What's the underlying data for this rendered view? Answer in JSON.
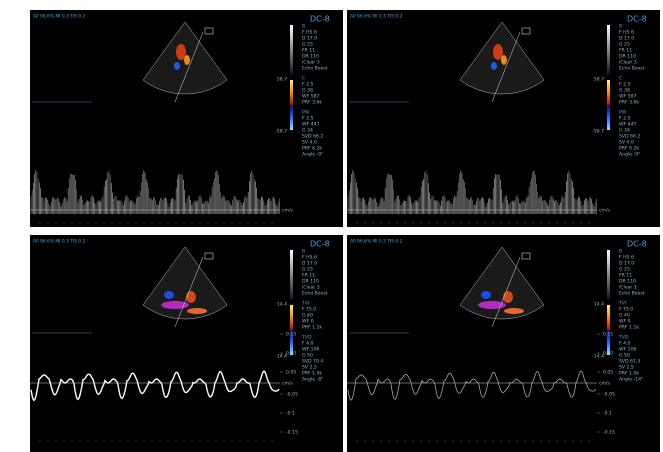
{
  "panels": [
    {
      "header": "AP 96.6% MI 0.3 TIS 0.2",
      "probe": "DC-8",
      "groups": [
        [
          "B",
          "F H5.6",
          "D 17.0",
          "G 25",
          "FR 11",
          "DR 110",
          "iClear 3",
          "Echo Boost"
        ],
        [
          "C",
          "F 2.5",
          "G 38",
          "WF 587",
          "PRF 3.6k"
        ],
        [
          "PW",
          "F 2.5",
          "WF 447",
          "G 34",
          "SVD 66.2",
          "SV 4.0",
          "PRF 6.2k",
          "Angle -9°"
        ]
      ],
      "bar_top": "58.7",
      "bar_bottom": "-58.7",
      "unit": "cm/s",
      "scale": [],
      "kind": "spectral",
      "flow": "cardiac"
    },
    {
      "header": "AP 96.6% MI 0.3 TIS 0.2",
      "probe": "DC-8",
      "groups": [
        [
          "B",
          "F H5.6",
          "D 17.0",
          "G 25",
          "FR 11",
          "DR 110",
          "iClear 3",
          "Echo Boost"
        ],
        [
          "C",
          "F 2.5",
          "G 38",
          "WF 587",
          "PRF 3.6k"
        ],
        [
          "PW",
          "F 2.5",
          "WF 447",
          "G 34",
          "SVD 66.2",
          "SV 4.0",
          "PRF 6.2k",
          "Angle -9°"
        ]
      ],
      "bar_top": "58.7",
      "bar_bottom": "-58.7",
      "unit": "cm/s",
      "scale": [],
      "kind": "spectral",
      "flow": "cardiac"
    },
    {
      "header": "AP 96.6% MI 0.3 TIS 0.2",
      "probe": "DC-8",
      "groups": [
        [
          "B",
          "F H5.6",
          "D 17.0",
          "G 25",
          "FR 11",
          "DR 110",
          "iClear 3",
          "Echo Boost"
        ],
        [
          "TVI",
          "F T5.0",
          "G 40",
          "WF 0",
          "PRF 1.1k"
        ],
        [
          "TVD",
          "F 4.0",
          "WF 106",
          "G 50",
          "SVD 79.4",
          "SV 2.5",
          "PRF 1.0k",
          "Angle -8°"
        ]
      ],
      "bar_top": "14.4",
      "bar_bottom": "-14.4",
      "unit": "cm/s",
      "scale": [
        "-0.15",
        "-0.1",
        "-0.05",
        "0.05",
        "0.10",
        "0.15"
      ],
      "kind": "trace",
      "flow": "tissue"
    },
    {
      "header": "AP 96.6% MI 0.3 TIS 0.2",
      "probe": "DC-8",
      "groups": [
        [
          "B",
          "F H5.6",
          "D 17.0",
          "G 25",
          "FR 11",
          "DR 110",
          "iClear 3",
          "Echo Boost"
        ],
        [
          "TVI",
          "F T5.0",
          "G 40",
          "WF 0",
          "PRF 1.1k"
        ],
        [
          "TVD",
          "F 4.0",
          "WF 106",
          "G 50",
          "SVD 61.3",
          "SV 2.5",
          "PRF 1.0k",
          "Angle -14°"
        ]
      ],
      "bar_top": "14.4",
      "bar_bottom": "-14.4",
      "unit": "cm/s",
      "scale": [
        "-0.15",
        "-0.1",
        "-0.05",
        "0.05",
        "0.10",
        "0.15"
      ],
      "kind": "trace",
      "flow": "tissue"
    }
  ]
}
